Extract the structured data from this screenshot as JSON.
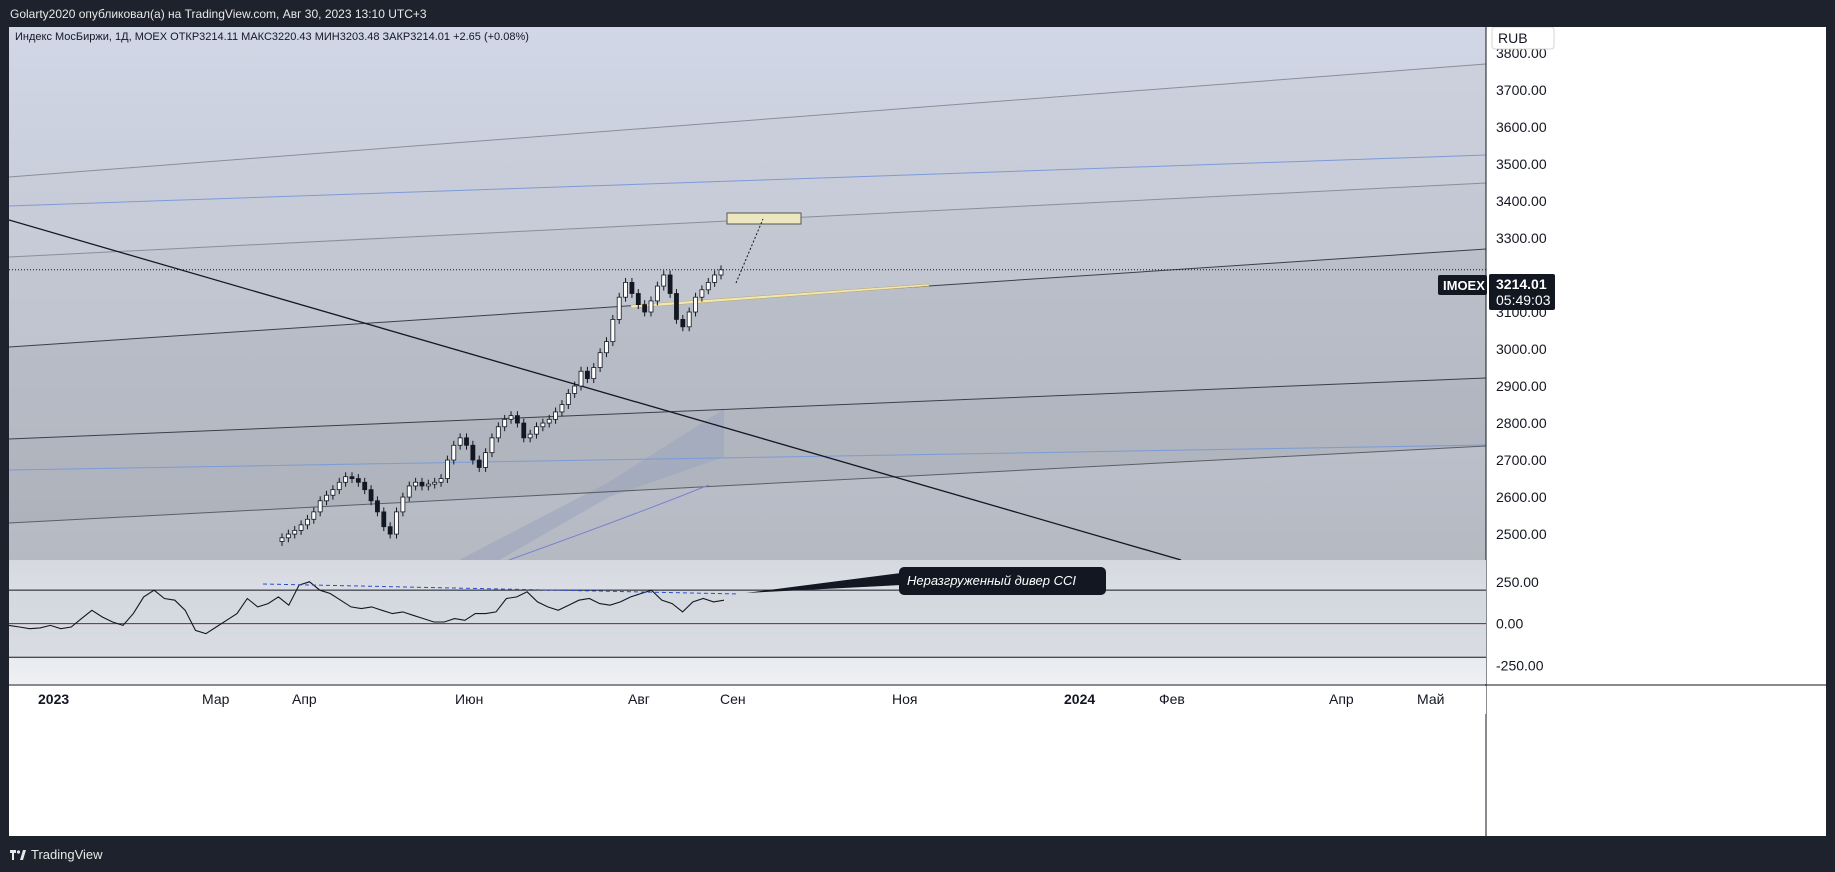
{
  "header": {
    "publish_line": "Golarty2020 опубликовал(а) на TradingView.com, Авг 30, 2023 13:10 UTC+3"
  },
  "footer": {
    "brand": "TradingView"
  },
  "chart_data": {
    "type": "candlestick",
    "legend": "Индекс МосБиржи, 1Д, MOEX  ОТКР3214.11  МАКС3220.43  МИН3203.48  ЗАКР3214.01  +2.65 (+0.08%)",
    "currency": "RUB",
    "symbol": "IMOEX",
    "last_price_label": "3214.01",
    "countdown": "05:49:03",
    "ylim": [
      2430,
      3870
    ],
    "y_ticks": [
      "3800.00",
      "3700.00",
      "3600.00",
      "3500.00",
      "3400.00",
      "3300.00",
      "3100.00",
      "3000.00",
      "2900.00",
      "2800.00",
      "2700.00",
      "2600.00",
      "2500.00"
    ],
    "x_ticks": [
      "2023",
      "Мар",
      "Апр",
      "Июн",
      "Авг",
      "Сен",
      "Ноя",
      "2024",
      "Фев",
      "Апр",
      "Май"
    ],
    "candles_close": [
      2490,
      2500,
      2510,
      2525,
      2540,
      2560,
      2590,
      2605,
      2620,
      2640,
      2655,
      2650,
      2640,
      2620,
      2590,
      2560,
      2520,
      2500,
      2560,
      2600,
      2630,
      2640,
      2630,
      2635,
      2640,
      2650,
      2700,
      2740,
      2760,
      2740,
      2700,
      2680,
      2720,
      2760,
      2790,
      2810,
      2820,
      2800,
      2760,
      2770,
      2790,
      2800,
      2810,
      2830,
      2850,
      2880,
      2900,
      2940,
      2920,
      2950,
      2990,
      3020,
      3080,
      3140,
      3180,
      3150,
      3120,
      3100,
      3130,
      3170,
      3200,
      3150,
      3080,
      3060,
      3100,
      3140,
      3160,
      3180,
      3200,
      3214
    ],
    "cci": {
      "ylim": [
        -360,
        380
      ],
      "y_ticks": [
        "250.00",
        "0.00",
        "-250.00"
      ],
      "levels": [
        200,
        0,
        -200
      ],
      "values": [
        -10,
        -20,
        -30,
        -25,
        -10,
        -30,
        -20,
        30,
        80,
        40,
        10,
        -10,
        60,
        160,
        200,
        150,
        140,
        80,
        -40,
        -60,
        -20,
        20,
        60,
        150,
        100,
        120,
        160,
        110,
        230,
        250,
        200,
        180,
        140,
        100,
        90,
        100,
        80,
        60,
        70,
        50,
        30,
        10,
        10,
        30,
        20,
        60,
        60,
        70,
        150,
        160,
        190,
        130,
        100,
        80,
        110,
        140,
        150,
        120,
        110,
        130,
        160,
        180,
        200,
        140,
        120,
        70,
        130,
        150,
        130,
        140
      ]
    },
    "annotation": "Неразгруженный дивер CCI"
  }
}
